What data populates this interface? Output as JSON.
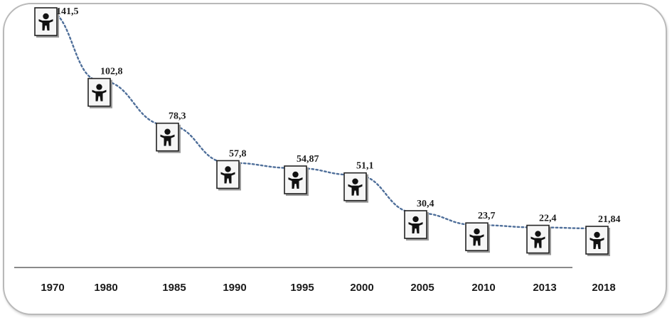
{
  "chart_data": {
    "type": "line",
    "title": "",
    "xlabel": "",
    "ylabel": "",
    "categories": [
      "1970",
      "1980",
      "1985",
      "1990",
      "1995",
      "2000",
      "2005",
      "2010",
      "2013",
      "2018"
    ],
    "value_labels": [
      "141,5",
      "102,8",
      "78,3",
      "57,8",
      "54,87",
      "51,1",
      "30,4",
      "23,7",
      "22,4",
      "21,84"
    ],
    "series": [
      {
        "values": [
          141.5,
          102.8,
          78.3,
          57.8,
          54.87,
          51.1,
          30.4,
          23.7,
          22.4,
          21.84
        ]
      }
    ],
    "ylim": [
      0,
      160
    ],
    "grid": false,
    "marker": "person-icon",
    "line_color": "#4f6f9a"
  }
}
